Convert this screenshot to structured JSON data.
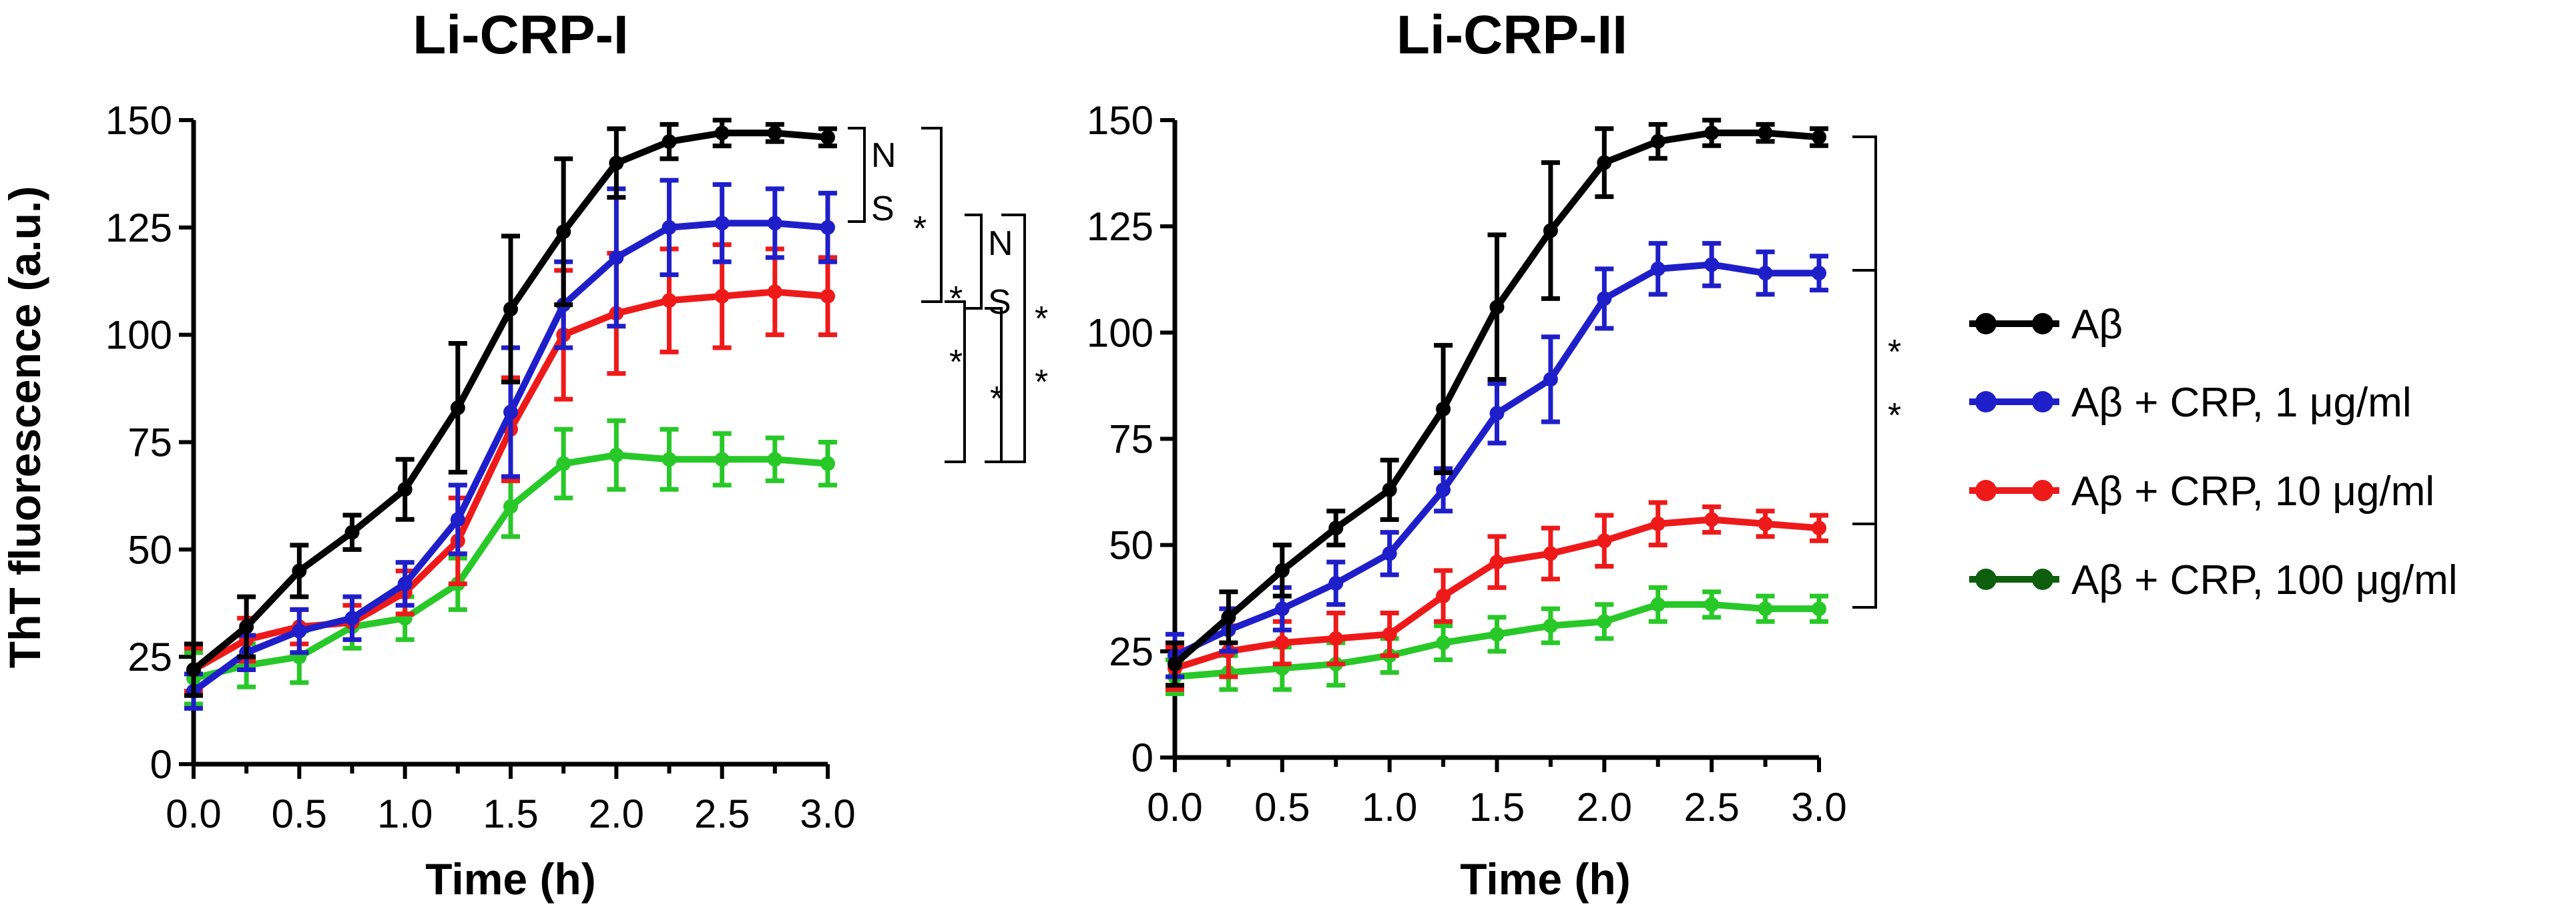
{
  "figure_ylabel": "ThT fluorescence (a.u.)",
  "colors": {
    "Aβ": "#000000",
    "Aβ + CRP, 1 μg/ml": "#1f1fc9",
    "Aβ + CRP, 10 μg/ml": "#ee1a1a",
    "Aβ + CRP, 100 μg/ml": "#28c828",
    "legend_100": "#0d5e0d"
  },
  "legend": {
    "entries": [
      "Aβ",
      "Aβ + CRP, 1 μg/ml",
      "Aβ + CRP, 10 μg/ml",
      "Aβ + CRP, 100 μg/ml"
    ]
  },
  "chart_data": [
    {
      "type": "line",
      "title": "Li-CRP-I",
      "xlabel": "Time (h)",
      "ylabel": "ThT fluorescence (a.u.)",
      "xlim": [
        0,
        3
      ],
      "ylim": [
        0,
        150
      ],
      "x": [
        0,
        0.25,
        0.5,
        0.75,
        1.0,
        1.25,
        1.5,
        1.75,
        2.0,
        2.25,
        2.5,
        2.75,
        3.0
      ],
      "xticks": [
        "0.0",
        "0.5",
        "1.0",
        "1.5",
        "2.0",
        "2.5",
        "3.0"
      ],
      "yticks": [
        "0",
        "25",
        "50",
        "75",
        "100",
        "125",
        "150"
      ],
      "series": [
        {
          "name": "Aβ",
          "values": [
            22,
            32,
            45,
            54,
            64,
            83,
            106,
            124,
            140,
            145,
            147,
            147,
            146
          ],
          "errors": [
            6,
            7,
            6,
            4,
            7,
            15,
            17,
            17,
            8,
            4,
            3,
            2,
            2
          ]
        },
        {
          "name": "Aβ + CRP, 1 μg/ml",
          "values": [
            17,
            26,
            31,
            34,
            42,
            57,
            82,
            107,
            118,
            125,
            126,
            126,
            125
          ],
          "errors": [
            4,
            4,
            5,
            5,
            5,
            8,
            15,
            10,
            16,
            11,
            9,
            8,
            8
          ]
        },
        {
          "name": "Aβ + CRP, 10 μg/ml",
          "values": [
            22,
            29,
            32,
            33,
            40,
            52,
            78,
            100,
            105,
            108,
            109,
            110,
            109
          ],
          "errors": [
            5,
            5,
            4,
            4,
            5,
            10,
            12,
            15,
            14,
            12,
            12,
            10,
            9
          ]
        },
        {
          "name": "Aβ + CRP, 100 μg/ml",
          "values": [
            20,
            23,
            25,
            32,
            34,
            42,
            60,
            70,
            72,
            71,
            71,
            71,
            70
          ],
          "errors": [
            6,
            5,
            6,
            5,
            5,
            6,
            7,
            8,
            8,
            7,
            6,
            5,
            5
          ]
        }
      ],
      "annotations": [
        "N",
        "S",
        "*",
        "N",
        "S",
        "*",
        "*",
        "*",
        "*",
        "*"
      ]
    },
    {
      "type": "line",
      "title": "Li-CRP-II",
      "xlabel": "Time (h)",
      "ylabel": "",
      "xlim": [
        0,
        3
      ],
      "ylim": [
        0,
        150
      ],
      "x": [
        0,
        0.25,
        0.5,
        0.75,
        1.0,
        1.25,
        1.5,
        1.75,
        2.0,
        2.25,
        2.5,
        2.75,
        3.0
      ],
      "xticks": [
        "0.0",
        "0.5",
        "1.0",
        "1.5",
        "2.0",
        "2.5",
        "3.0"
      ],
      "yticks": [
        "0",
        "25",
        "50",
        "75",
        "100",
        "125",
        "150"
      ],
      "series": [
        {
          "name": "Aβ",
          "values": [
            22,
            33,
            44,
            54,
            63,
            82,
            106,
            124,
            140,
            145,
            147,
            147,
            146
          ],
          "errors": [
            5,
            6,
            6,
            4,
            7,
            15,
            17,
            16,
            8,
            4,
            3,
            2,
            2
          ]
        },
        {
          "name": "Aβ + CRP, 1 μg/ml",
          "values": [
            24,
            30,
            35,
            41,
            48,
            63,
            81,
            89,
            108,
            115,
            116,
            114,
            114
          ],
          "errors": [
            5,
            5,
            5,
            5,
            5,
            5,
            7,
            10,
            7,
            6,
            5,
            5,
            4
          ]
        },
        {
          "name": "Aβ + CRP, 10 μg/ml",
          "values": [
            21,
            25,
            27,
            28,
            29,
            38,
            46,
            48,
            51,
            55,
            56,
            55,
            54
          ],
          "errors": [
            5,
            6,
            5,
            6,
            5,
            6,
            6,
            6,
            6,
            5,
            3,
            3,
            3
          ]
        },
        {
          "name": "Aβ + CRP, 100 μg/ml",
          "values": [
            19,
            20,
            21,
            22,
            24,
            27,
            29,
            31,
            32,
            36,
            36,
            35,
            35
          ],
          "errors": [
            4,
            4,
            5,
            5,
            4,
            4,
            4,
            4,
            4,
            4,
            3,
            3,
            3
          ]
        }
      ],
      "annotations": [
        "*",
        "*"
      ]
    }
  ]
}
